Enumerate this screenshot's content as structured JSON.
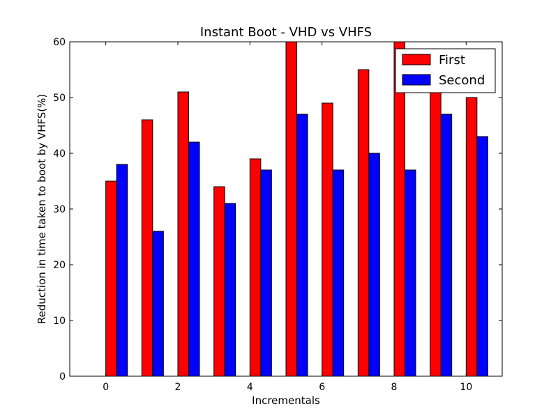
{
  "chart_data": {
    "type": "bar",
    "title": "Instant Boot - VHD vs VHFS",
    "xlabel": "Incrementals",
    "ylabel": "Reduction in time taken to boot by VHFS(%)",
    "x": [
      0,
      1,
      2,
      3,
      4,
      5,
      6,
      7,
      8,
      9,
      10
    ],
    "xlim": [
      -1,
      11
    ],
    "ylim": [
      0,
      60
    ],
    "xticks": [
      "0",
      "2",
      "4",
      "6",
      "8",
      "10"
    ],
    "yticks": [
      "0",
      "10",
      "20",
      "30",
      "40",
      "50",
      "60"
    ],
    "grid": false,
    "legend_position": "top-right",
    "series": [
      {
        "name": "First",
        "color": "#ff0000",
        "values": [
          35,
          46,
          51,
          34,
          39,
          60,
          49,
          55,
          60,
          53,
          50
        ]
      },
      {
        "name": "Second",
        "color": "#0000ff",
        "values": [
          38,
          26,
          42,
          31,
          37,
          47,
          37,
          40,
          37,
          47,
          43
        ]
      }
    ]
  }
}
